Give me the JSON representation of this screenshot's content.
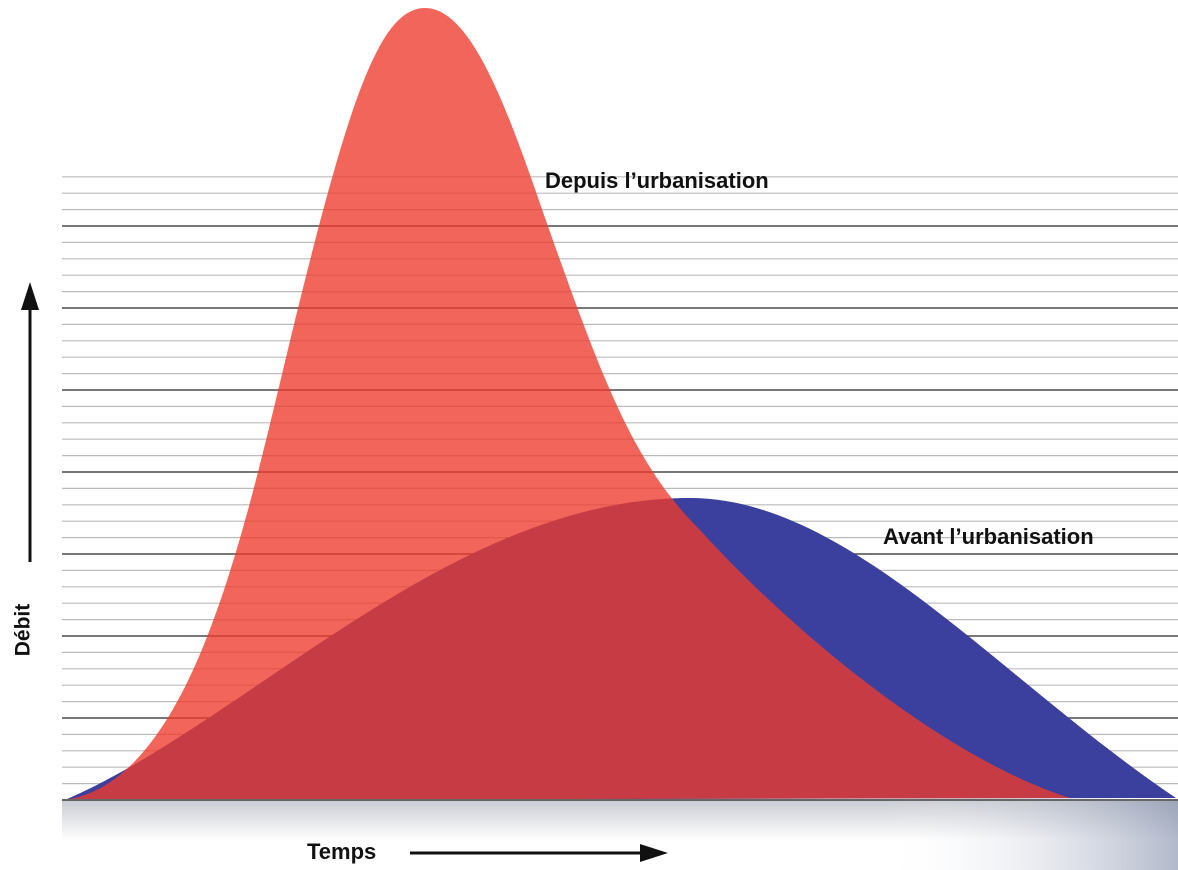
{
  "curves": {
    "after": "Depuis l’urbanisation",
    "before": "Avant l’urbanisation"
  },
  "axes": {
    "y": "Débit",
    "x": "Temps"
  }
}
